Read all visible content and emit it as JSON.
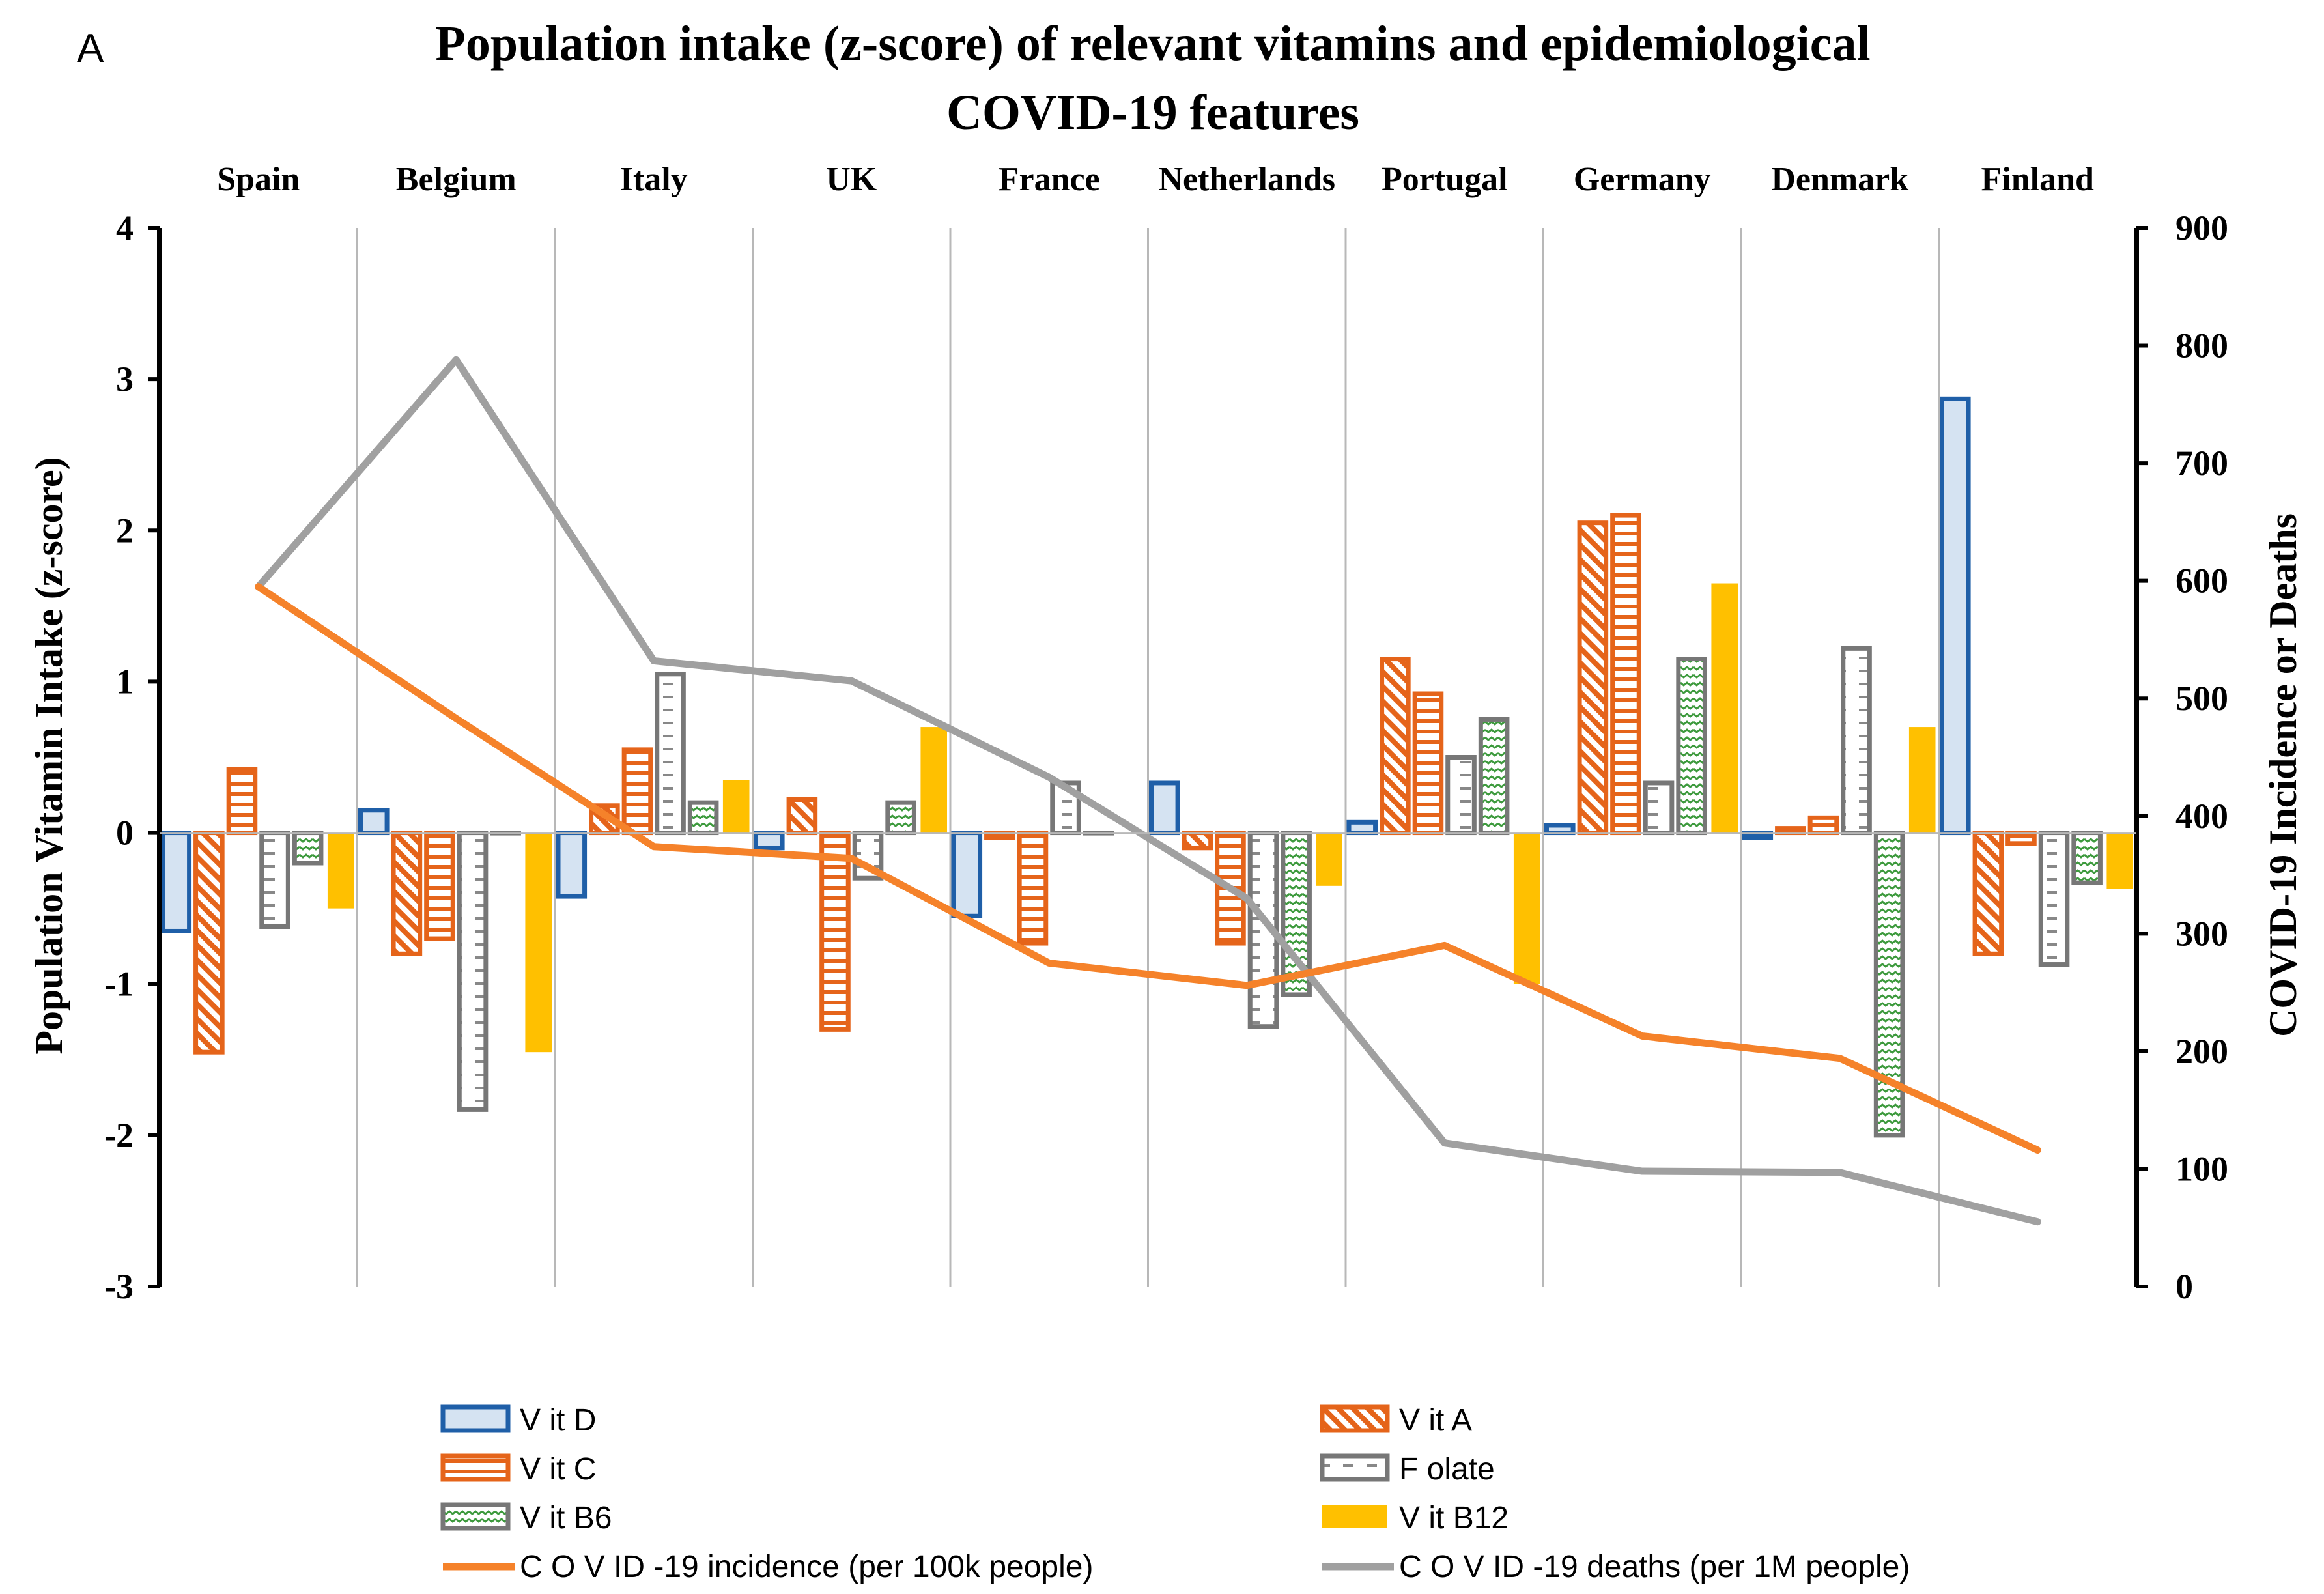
{
  "chart_data": {
    "type": "bar",
    "panel_label": "A",
    "title_line1": "Population intake (z-score) of relevant vitamins and epidemiological",
    "title_line2": "COVID-19 features",
    "categories": [
      "Spain",
      "Belgium",
      "Italy",
      "UK",
      "France",
      "Netherlands",
      "Portugal",
      "Germany",
      "Denmark",
      "Finland"
    ],
    "ylabel": "Population Vitamin Intake (z-score)",
    "ylim": [
      -3,
      4
    ],
    "yticks": [
      "-3",
      "-2",
      "-1",
      "0",
      "1",
      "2",
      "3",
      "4"
    ],
    "y2label": "COVID-19  Incidence or Deaths",
    "y2lim": [
      0,
      900
    ],
    "y2ticks": [
      "0",
      "100",
      "200",
      "300",
      "400",
      "500",
      "600",
      "700",
      "800",
      "900"
    ],
    "series": [
      {
        "name": "Vit D",
        "legend": "V it D",
        "values": [
          -0.65,
          0.15,
          -0.42,
          -0.1,
          -0.55,
          0.33,
          0.07,
          0.05,
          -0.03,
          2.87
        ]
      },
      {
        "name": "Vit A",
        "legend": "V it A",
        "values": [
          -1.45,
          -0.8,
          0.18,
          0.22,
          -0.03,
          -0.1,
          1.15,
          2.05,
          0.03,
          -0.8
        ]
      },
      {
        "name": "Vit C",
        "legend": "V it C",
        "values": [
          0.42,
          -0.7,
          0.55,
          -1.3,
          -0.73,
          -0.73,
          0.92,
          2.1,
          0.1,
          -0.07
        ]
      },
      {
        "name": "Folate",
        "legend": "F olate",
        "values": [
          -0.62,
          -1.83,
          1.05,
          -0.3,
          0.33,
          -1.28,
          0.5,
          0.33,
          1.22,
          -0.87
        ]
      },
      {
        "name": "Vit B6",
        "legend": "V it B6",
        "values": [
          -0.2,
          0.0,
          0.2,
          0.2,
          0.0,
          -1.07,
          0.75,
          1.15,
          -2.0,
          -0.33
        ]
      },
      {
        "name": "Vit B12",
        "legend": "V it B12",
        "values": [
          -0.5,
          -1.45,
          0.35,
          0.7,
          0.0,
          -0.35,
          -1.0,
          1.65,
          0.7,
          -0.37
        ]
      }
    ],
    "lines": [
      {
        "name": "COVID-19 incidence (per 100k people)",
        "legend": "C O V ID -19 incidence (per 100k people)",
        "axis": "right",
        "values": [
          595,
          483,
          374,
          364,
          275,
          256,
          290,
          213,
          194,
          116
        ]
      },
      {
        "name": "COVID-19 deaths (per 1M people)",
        "legend": "C O V ID -19 deaths (per 1M people)",
        "axis": "right",
        "values": [
          595,
          788,
          532,
          515,
          433,
          330,
          122,
          98,
          97,
          55
        ]
      }
    ],
    "colors": {
      "blue": "#1f5fa8",
      "blue_fill": "#d5e3f2",
      "orange": "#e5641a",
      "line_orange": "#f5822a",
      "gray": "#777777",
      "line_gray": "#a0a0a0",
      "green": "#3d9a3d",
      "gold": "#ffc000",
      "grid": "#b8b8b8"
    },
    "legend_position": "bottom"
  }
}
